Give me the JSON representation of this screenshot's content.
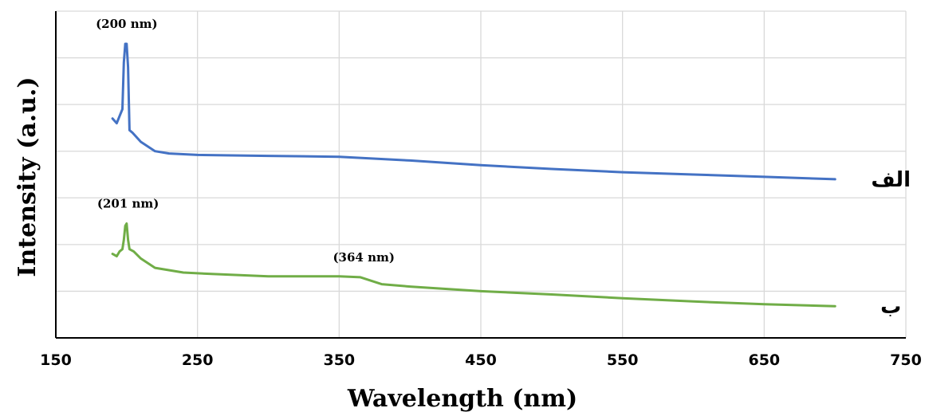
{
  "chart_data": {
    "type": "line",
    "xlabel": "Wavelength (nm)",
    "ylabel": "Intensity (a.u.)",
    "xlim": [
      150,
      750
    ],
    "ylim": [
      0,
      7
    ],
    "xticks": [
      150,
      250,
      350,
      450,
      550,
      650,
      750
    ],
    "grid": true,
    "y_tick_labels_shown": false,
    "series": [
      {
        "name": "الف",
        "color": "#4472c4",
        "x": [
          190,
          193,
          195,
          197,
          198,
          199,
          200,
          201,
          202,
          204,
          210,
          220,
          230,
          250,
          300,
          350,
          400,
          450,
          500,
          550,
          600,
          650,
          700
        ],
        "y": [
          4.7,
          4.6,
          4.75,
          4.9,
          5.9,
          6.3,
          6.3,
          5.8,
          4.45,
          4.4,
          4.2,
          4.0,
          3.95,
          3.92,
          3.9,
          3.88,
          3.8,
          3.7,
          3.62,
          3.55,
          3.5,
          3.45,
          3.4
        ]
      },
      {
        "name": "ب",
        "color": "#70ad47",
        "x": [
          190,
          193,
          195,
          197,
          198,
          199,
          200,
          201,
          202,
          205,
          210,
          220,
          240,
          260,
          300,
          350,
          365,
          380,
          400,
          450,
          500,
          550,
          600,
          650,
          700
        ],
        "y": [
          1.8,
          1.75,
          1.85,
          1.9,
          2.1,
          2.4,
          2.45,
          2.1,
          1.9,
          1.85,
          1.7,
          1.5,
          1.4,
          1.37,
          1.32,
          1.32,
          1.3,
          1.15,
          1.1,
          1.0,
          0.93,
          0.85,
          0.78,
          0.72,
          0.68
        ]
      }
    ],
    "annotations": [
      {
        "text": "(200 nm)",
        "x": 200,
        "series": 0
      },
      {
        "text": "(201 nm)",
        "x": 201,
        "series": 1
      },
      {
        "text": "(364 nm)",
        "x": 364,
        "series": 1
      }
    ]
  }
}
